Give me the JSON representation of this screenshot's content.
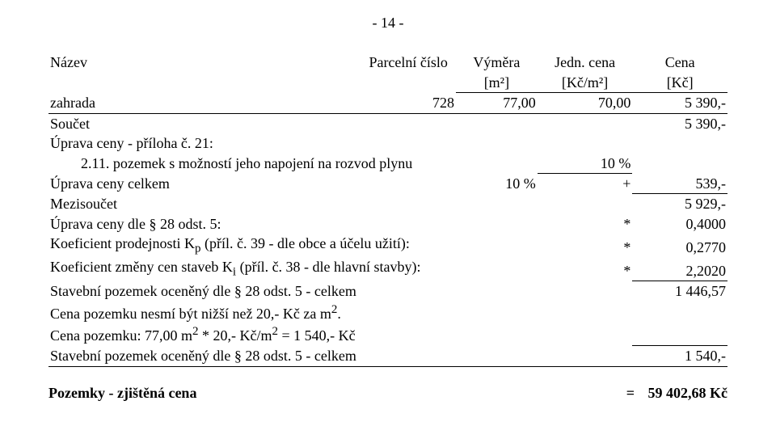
{
  "pageNumber": "- 14 -",
  "headers": {
    "name": "Název",
    "parcel": "Parcelní číslo",
    "area": "Výměra",
    "area_unit": "[m²]",
    "unit_price": "Jedn. cena",
    "unit_price_unit": "[Kč/m²]",
    "total": "Cena",
    "total_unit": "[Kč]"
  },
  "r1": {
    "name": "zahrada",
    "parcel": "728",
    "area": "77,00",
    "unit": "70,00",
    "total": "5 390,-"
  },
  "r2": {
    "name": "Součet",
    "total": "5 390,-"
  },
  "r3": {
    "name": "Úprava ceny - příloha č. 21:"
  },
  "r4": {
    "name": "2.11. pozemek s možností jeho napojení na rozvod plynu",
    "unit": "10 %"
  },
  "r5": {
    "name": "Úprava ceny celkem",
    "area": "10 %",
    "plus": "+",
    "total": "539,-"
  },
  "r6": {
    "name": "Mezisoučet",
    "total": "5 929,-"
  },
  "r7": {
    "name": "Úprava ceny dle § 28 odst. 5:",
    "star": "*",
    "total": "0,4000"
  },
  "r8a": "Koeficient prodejnosti K",
  "r8b": " (příl. č. 39 - dle obce a účelu užití):",
  "r8sub": "p",
  "r8star": "*",
  "r8total": "0,2770",
  "r9a": "Koeficient změny cen staveb K",
  "r9b": " (příl. č. 38 - dle hlavní stavby):",
  "r9sub": "i",
  "r9star": "*",
  "r9total": "2,2020",
  "r10": {
    "name": "Stavební pozemek oceněný dle § 28 odst. 5 - celkem",
    "total": "1 446,57"
  },
  "r11a": "Cena pozemku nesmí být nižší než 20,- Kč za m",
  "r11sup": "2",
  "r11dot": ".",
  "r12a": "Cena pozemku: 77,00 m",
  "r12s1": "2",
  "r12b": " * 20,- Kč/m",
  "r12s2": "2",
  "r12c": " = 1 540,- Kč",
  "r13": {
    "name": "Stavební pozemek oceněný dle § 28 odst. 5 - celkem",
    "total": "1 540,-"
  },
  "final": {
    "label": "Pozemky  - zjištěná cena",
    "eq": "=",
    "value": "59 402,68 Kč"
  }
}
